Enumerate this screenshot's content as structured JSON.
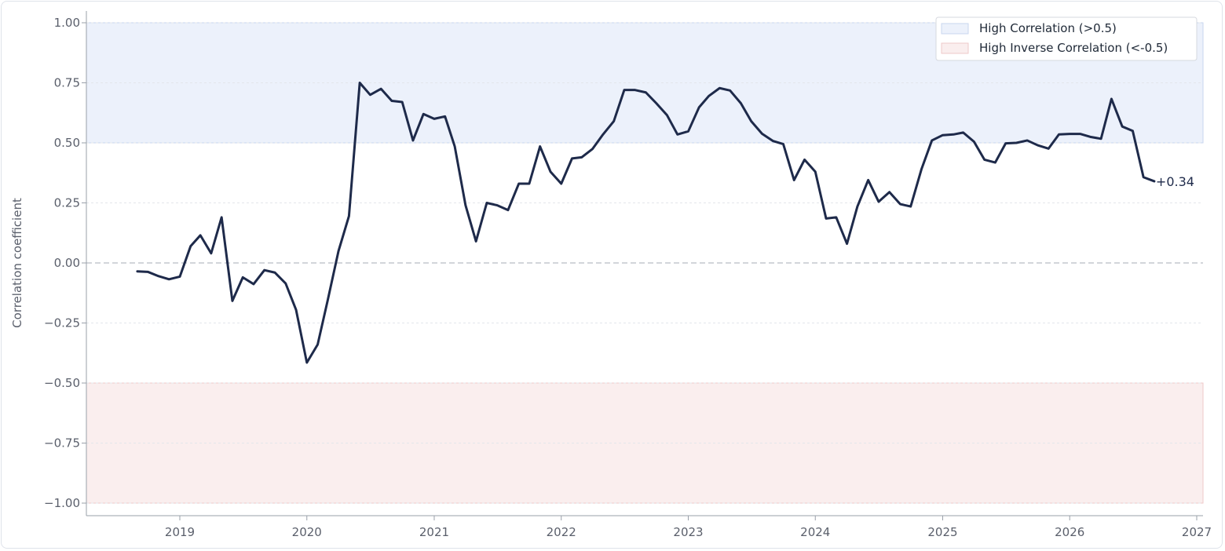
{
  "chart_data": {
    "type": "line",
    "title": "",
    "xlabel": "",
    "ylabel": "Correlation coefficient",
    "xlim": [
      "2018-04-01",
      "2027-01-01"
    ],
    "ylim": [
      -1.05,
      1.05
    ],
    "x_ticks": [
      "2019",
      "2020",
      "2021",
      "2022",
      "2023",
      "2024",
      "2025",
      "2026",
      "2027"
    ],
    "y_ticks": [
      "1.00",
      "0.75",
      "0.50",
      "0.25",
      "0.00",
      "−0.25",
      "−0.50",
      "−0.75",
      "−1.00"
    ],
    "y_tick_values": [
      1.0,
      0.75,
      0.5,
      0.25,
      0.0,
      -0.25,
      -0.5,
      -0.75,
      -1.0
    ],
    "grid": true,
    "zero_line": "dashed",
    "bands": [
      {
        "label": "High Correlation (>0.5)",
        "from": 0.5,
        "to": 1.0,
        "color": "#ecf1fb",
        "border": "#c9d6ef"
      },
      {
        "label": "High Inverse Correlation (<-0.5)",
        "from": -1.0,
        "to": -0.5,
        "color": "#faeeee",
        "border": "#efc9c9"
      }
    ],
    "legend_position": "top-right",
    "end_label": "+0.34",
    "series": [
      {
        "color": "#1e2a4a",
        "x": [
          "2018-09",
          "2018-10",
          "2018-11",
          "2018-12",
          "2019-01",
          "2019-02",
          "2019-03",
          "2019-04",
          "2019-05",
          "2019-06",
          "2019-07",
          "2019-08",
          "2019-09",
          "2019-10",
          "2019-11",
          "2019-12",
          "2020-01",
          "2020-02",
          "2020-03",
          "2020-04",
          "2020-05",
          "2020-06",
          "2020-07",
          "2020-08",
          "2020-09",
          "2020-10",
          "2020-11",
          "2020-12",
          "2021-01",
          "2021-02",
          "2021-03",
          "2021-04",
          "2021-05",
          "2021-06",
          "2021-07",
          "2021-08",
          "2021-09",
          "2021-10",
          "2021-11",
          "2021-12",
          "2022-01",
          "2022-02",
          "2022-03",
          "2022-04",
          "2022-05",
          "2022-06",
          "2022-07",
          "2022-08",
          "2022-09",
          "2022-10",
          "2022-11",
          "2022-12",
          "2023-01",
          "2023-02",
          "2023-03",
          "2023-04",
          "2023-05",
          "2023-06",
          "2023-07",
          "2023-08",
          "2023-09",
          "2023-10",
          "2023-11",
          "2023-12",
          "2024-01",
          "2024-02",
          "2024-03",
          "2024-04",
          "2024-05",
          "2024-06",
          "2024-07",
          "2024-08",
          "2024-09",
          "2024-10",
          "2024-11",
          "2024-12",
          "2025-01",
          "2025-02",
          "2025-03",
          "2025-04",
          "2025-05",
          "2025-06",
          "2025-07",
          "2025-08",
          "2025-09",
          "2025-10",
          "2025-11",
          "2025-12",
          "2026-01",
          "2026-02",
          "2026-03",
          "2026-04",
          "2026-05",
          "2026-06",
          "2026-07",
          "2026-08",
          "2026-09"
        ],
        "y": [
          -0.035,
          -0.037,
          -0.055,
          -0.068,
          -0.057,
          0.07,
          0.115,
          0.04,
          0.19,
          -0.158,
          -0.06,
          -0.088,
          -0.03,
          -0.04,
          -0.085,
          -0.195,
          -0.415,
          -0.34,
          -0.155,
          0.05,
          0.195,
          0.75,
          0.7,
          0.725,
          0.675,
          0.67,
          0.51,
          0.62,
          0.6,
          0.61,
          0.485,
          0.24,
          0.09,
          0.25,
          0.24,
          0.22,
          0.33,
          0.33,
          0.485,
          0.38,
          0.33,
          0.435,
          0.44,
          0.475,
          0.535,
          0.59,
          0.72,
          0.72,
          0.71,
          0.665,
          0.615,
          0.535,
          0.548,
          0.648,
          0.695,
          0.728,
          0.718,
          0.665,
          0.59,
          0.538,
          0.508,
          0.495,
          0.345,
          0.43,
          0.38,
          0.185,
          0.19,
          0.08,
          0.235,
          0.345,
          0.255,
          0.295,
          0.245,
          0.235,
          0.39,
          0.51,
          0.532,
          0.535,
          0.543,
          0.505,
          0.43,
          0.418,
          0.498,
          0.5,
          0.51,
          0.49,
          0.476,
          0.535,
          0.537,
          0.537,
          0.525,
          0.517,
          0.683,
          0.568,
          0.55,
          0.357,
          0.34
        ]
      }
    ]
  }
}
